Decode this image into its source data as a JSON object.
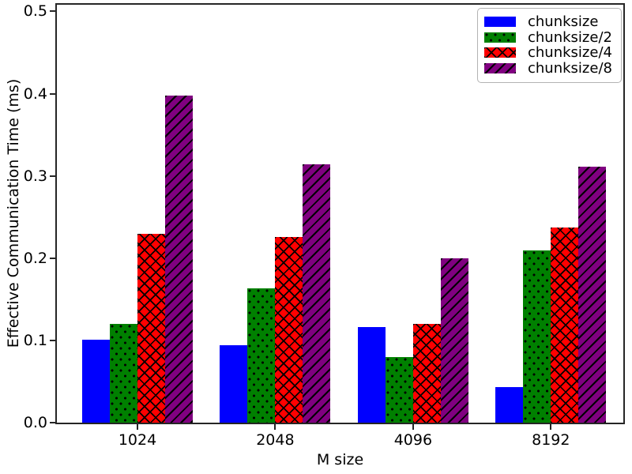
{
  "chart_data": {
    "type": "bar",
    "title": "",
    "xlabel": "M size",
    "ylabel": "Effective Communication Time (ms)",
    "categories": [
      "1024",
      "2048",
      "4096",
      "8192"
    ],
    "series": [
      {
        "name": "chunksize",
        "color": "#0000ff",
        "hatch": "none",
        "values": [
          0.101,
          0.094,
          0.116,
          0.043
        ]
      },
      {
        "name": "chunksize/2",
        "color": "#008000",
        "hatch": "dots",
        "values": [
          0.12,
          0.163,
          0.08,
          0.209
        ]
      },
      {
        "name": "chunksize/4",
        "color": "#ff0000",
        "hatch": "cross",
        "values": [
          0.23,
          0.226,
          0.12,
          0.237
        ]
      },
      {
        "name": "chunksize/8",
        "color": "#800080",
        "hatch": "diag",
        "values": [
          0.398,
          0.314,
          0.2,
          0.311
        ]
      }
    ],
    "ylim": [
      0,
      0.508
    ],
    "yticks": [
      0.0,
      0.1,
      0.2,
      0.3,
      0.4,
      0.5
    ],
    "grid": false,
    "legend": {
      "position": "upper-right",
      "labels": [
        "chunksize",
        "chunksize/2",
        "chunksize/4",
        "chunksize/8"
      ]
    }
  },
  "colors": {
    "spine": "#262626",
    "tick": "#262626",
    "text": "#000000",
    "legend_border": "#b3b3b3",
    "background": "#ffffff"
  }
}
